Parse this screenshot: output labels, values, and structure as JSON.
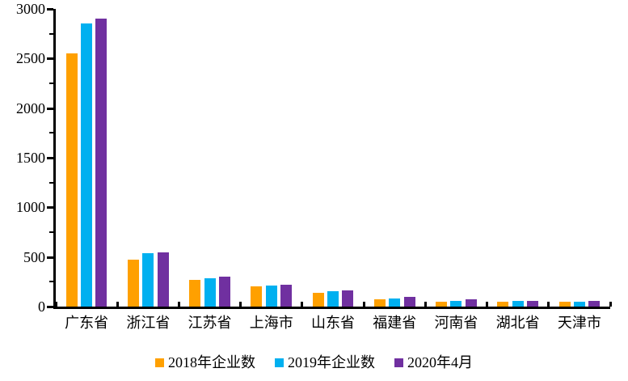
{
  "chart_data": {
    "type": "bar",
    "title": "",
    "xlabel": "",
    "ylabel": "",
    "categories": [
      "广东省",
      "浙江省",
      "江苏省",
      "上海市",
      "山东省",
      "福建省",
      "河南省",
      "湖北省",
      "天津市"
    ],
    "series": [
      {
        "name": "2018年企业数",
        "color": "#FFA000",
        "values": [
          2550,
          470,
          270,
          205,
          140,
          72,
          48,
          48,
          50
        ]
      },
      {
        "name": "2019年企业数",
        "color": "#00B0F0",
        "values": [
          2850,
          538,
          288,
          212,
          156,
          82,
          55,
          55,
          47
        ]
      },
      {
        "name": "2020年4月",
        "color": "#7030A0",
        "values": [
          2900,
          550,
          300,
          220,
          160,
          100,
          76,
          57,
          58
        ]
      }
    ],
    "ylim": [
      0,
      3000
    ],
    "yticks": [
      0,
      500,
      1000,
      1500,
      2000,
      2500,
      3000
    ],
    "ytick_step": 500,
    "yminor_step": 250,
    "grid": false,
    "legend_position": "bottom",
    "axis_color": "#000000",
    "background_color": "#FFFFFF"
  }
}
